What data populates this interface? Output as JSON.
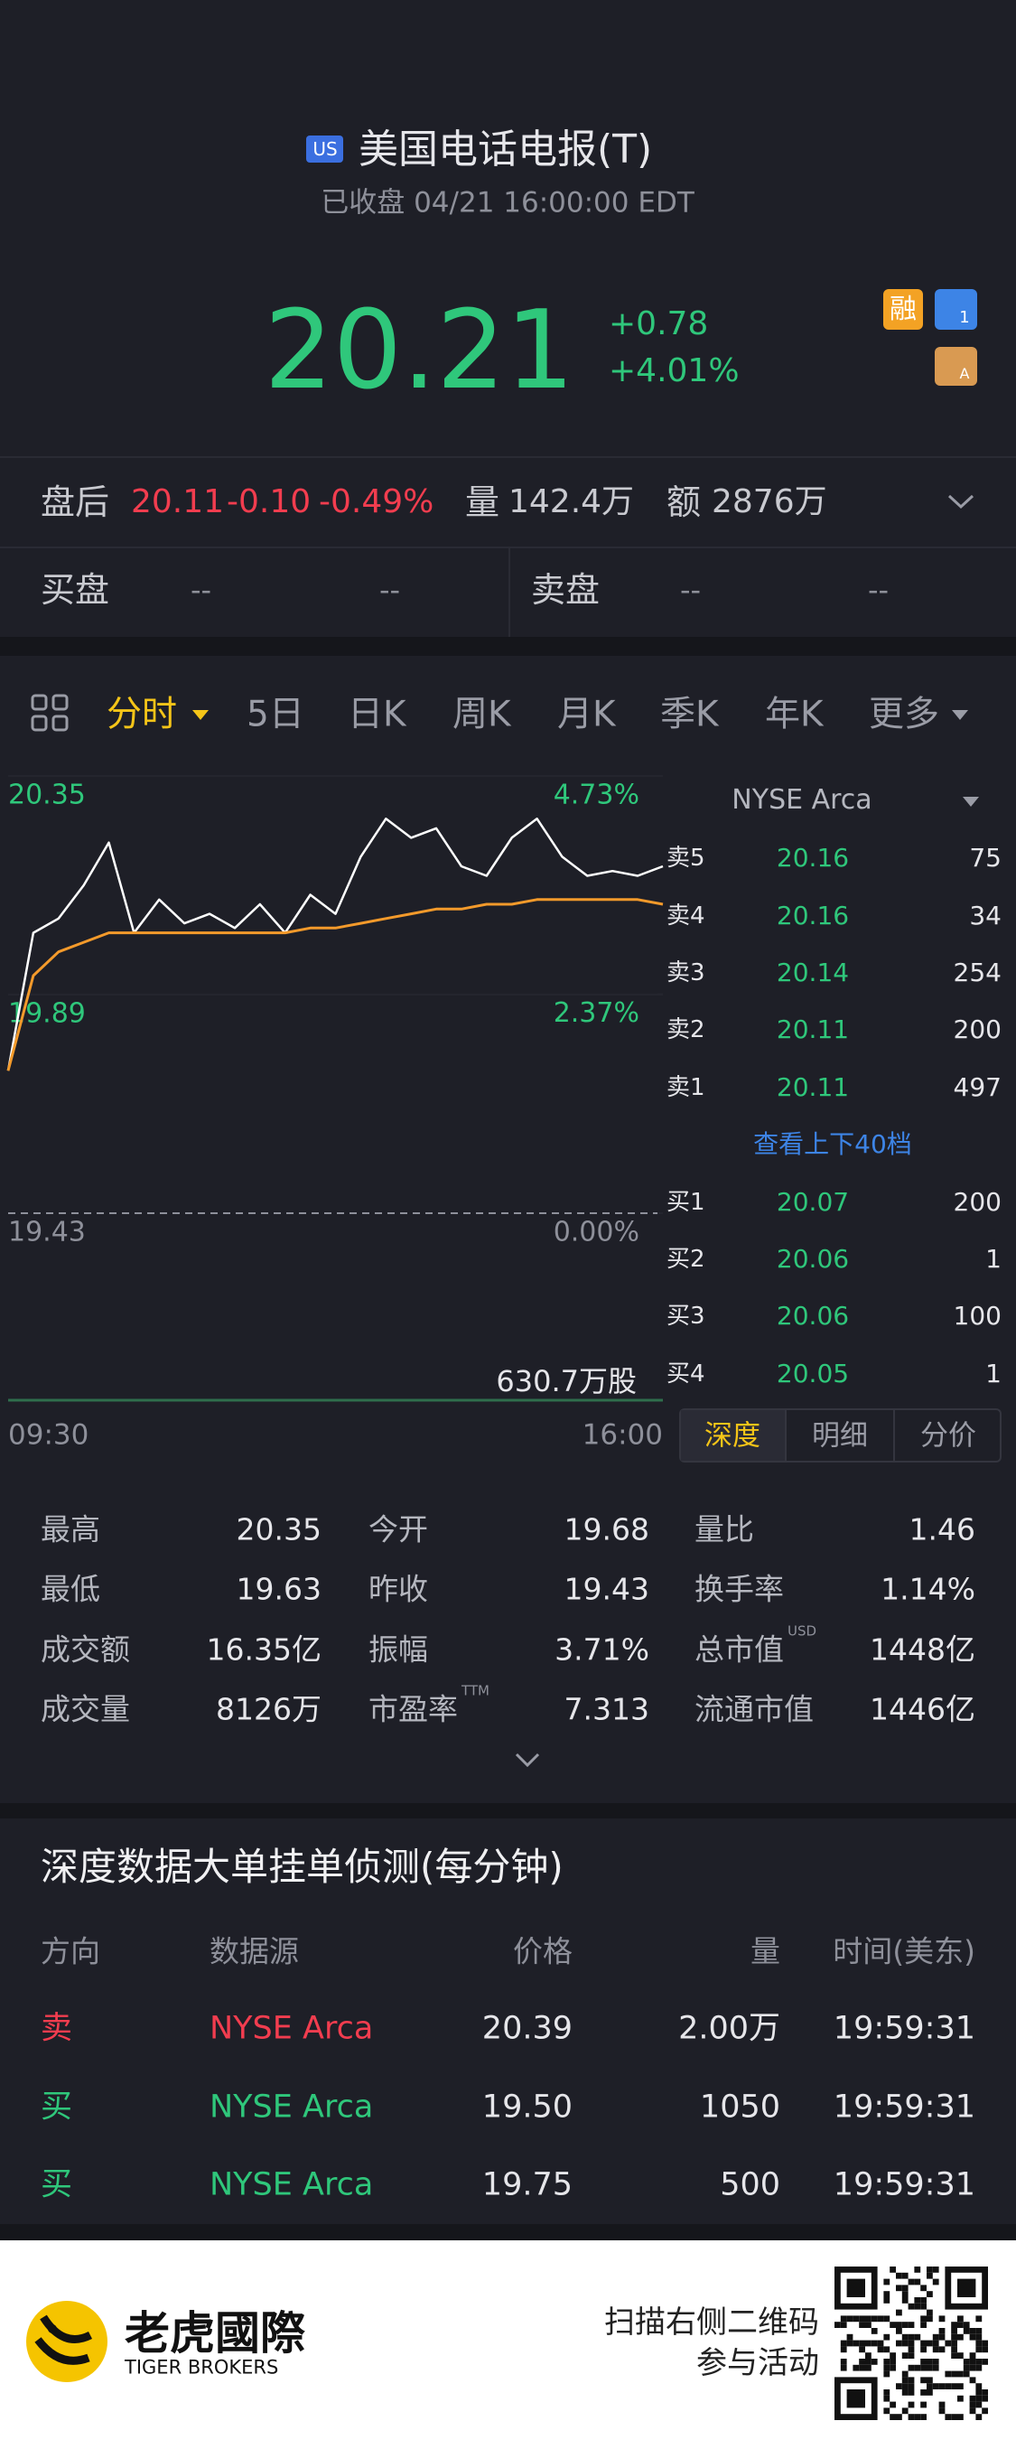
{
  "header": {
    "market_badge": "US",
    "title": "美国电话电报(T)",
    "status": "已收盘 04/21 16:00:00 EDT"
  },
  "quote": {
    "price": "20.21",
    "change": "+0.78",
    "change_pct": "+4.01%",
    "badges": {
      "margin": "融",
      "level": "1",
      "account": "A"
    }
  },
  "after_hours": {
    "label": "盘后",
    "price": "20.11",
    "change": "-0.10",
    "change_pct": "-0.49%",
    "volume_label": "量",
    "volume": "142.4万",
    "amount_label": "额",
    "amount": "2876万"
  },
  "book_summary": {
    "bid_label": "买盘",
    "bid": [
      "--",
      "--"
    ],
    "ask_label": "卖盘",
    "ask": [
      "--",
      "--"
    ]
  },
  "tabs": {
    "items": [
      "分时",
      "5日",
      "日K",
      "周K",
      "月K",
      "季K",
      "年K",
      "更多"
    ],
    "active": 0
  },
  "chart_data": {
    "type": "line",
    "x": [
      "09:30",
      "09:45",
      "10:00",
      "10:15",
      "10:30",
      "10:45",
      "11:00",
      "11:15",
      "11:30",
      "11:45",
      "12:00",
      "12:15",
      "12:30",
      "12:45",
      "13:00",
      "13:15",
      "13:30",
      "13:45",
      "14:00",
      "14:15",
      "14:30",
      "14:45",
      "15:00",
      "15:15",
      "15:30",
      "15:45",
      "16:00"
    ],
    "series": [
      {
        "color": "#ffffff",
        "values": [
          19.73,
          20.02,
          20.05,
          20.12,
          20.21,
          20.02,
          20.09,
          20.04,
          20.06,
          20.03,
          20.08,
          20.02,
          20.1,
          20.06,
          20.18,
          20.26,
          20.22,
          20.24,
          20.16,
          20.14,
          20.22,
          20.26,
          20.18,
          20.14,
          20.15,
          20.14,
          20.16
        ]
      },
      {
        "color": "#f39a2b",
        "values": [
          19.73,
          19.93,
          19.98,
          20.0,
          20.02,
          20.02,
          20.02,
          20.02,
          20.02,
          20.02,
          20.02,
          20.02,
          20.03,
          20.03,
          20.04,
          20.05,
          20.06,
          20.07,
          20.07,
          20.08,
          20.08,
          20.09,
          20.09,
          20.09,
          20.09,
          20.09,
          20.08
        ]
      }
    ],
    "xlim": [
      "09:30",
      "16:00"
    ],
    "xticks": [
      "09:30",
      "16:00"
    ],
    "ylim": [
      19.43,
      20.35
    ],
    "yticks": [
      19.43,
      19.89,
      20.35
    ],
    "y2lim": [
      0,
      4.73
    ],
    "y2ticks": [
      {
        "value": 0,
        "label": "0.00%"
      },
      {
        "value": 2.37,
        "label": "2.37%"
      },
      {
        "value": 4.73,
        "label": "4.73%"
      }
    ],
    "volume_label": "630.7万股"
  },
  "order_book": {
    "exchange": "NYSE Arca",
    "asks": [
      {
        "label": "卖5",
        "price": "20.16",
        "size": "75"
      },
      {
        "label": "卖4",
        "price": "20.16",
        "size": "34"
      },
      {
        "label": "卖3",
        "price": "20.14",
        "size": "254"
      },
      {
        "label": "卖2",
        "price": "20.11",
        "size": "200"
      },
      {
        "label": "卖1",
        "price": "20.11",
        "size": "497"
      }
    ],
    "more": "查看上下40档",
    "bids": [
      {
        "label": "买1",
        "price": "20.07",
        "size": "200"
      },
      {
        "label": "买2",
        "price": "20.06",
        "size": "1"
      },
      {
        "label": "买3",
        "price": "20.06",
        "size": "100"
      },
      {
        "label": "买4",
        "price": "20.05",
        "size": "1"
      }
    ],
    "tabs": [
      "深度",
      "明细",
      "分价"
    ],
    "active_tab": 0
  },
  "stats": [
    [
      {
        "label": "最高",
        "value": "20.35"
      },
      {
        "label": "今开",
        "value": "19.68"
      },
      {
        "label": "量比",
        "value": "1.46"
      }
    ],
    [
      {
        "label": "最低",
        "value": "19.63"
      },
      {
        "label": "昨收",
        "value": "19.43"
      },
      {
        "label": "换手率",
        "value": "1.14%"
      }
    ],
    [
      {
        "label": "成交额",
        "value": "16.35亿"
      },
      {
        "label": "振幅",
        "value": "3.71%"
      },
      {
        "label": "总市值",
        "sup": "USD",
        "value": "1448亿"
      }
    ],
    [
      {
        "label": "成交量",
        "value": "8126万"
      },
      {
        "label": "市盈率",
        "sup": "TTM",
        "value": "7.313"
      },
      {
        "label": "流通市值",
        "value": "1446亿"
      }
    ]
  ],
  "depth": {
    "title": "深度数据大单挂单侦测(每分钟)",
    "headers": [
      "方向",
      "数据源",
      "价格",
      "量",
      "时间(美东)"
    ],
    "rows": [
      [
        "卖",
        "NYSE Arca",
        "20.39",
        "2.00万",
        "19:59:31"
      ],
      [
        "买",
        "NYSE Arca",
        "19.50",
        "1050",
        "19:59:31"
      ],
      [
        "买",
        "NYSE Arca",
        "19.75",
        "500",
        "19:59:31"
      ]
    ]
  },
  "footer": {
    "brand": "老虎國際",
    "brand_en": "TIGER BROKERS",
    "cta": [
      "扫描右侧二维码",
      "参与活动"
    ]
  }
}
